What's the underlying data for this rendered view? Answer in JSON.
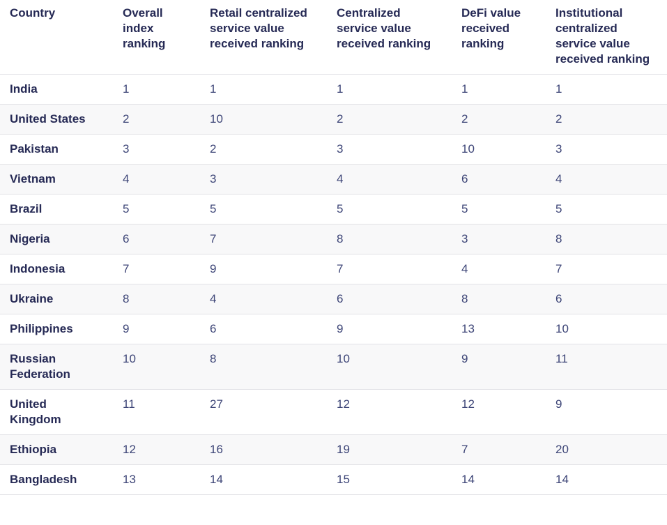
{
  "colors": {
    "header_text": "#262a55",
    "number_text": "#3d4577",
    "row_stripe": "#f8f8f9",
    "border": "#e2e2e6",
    "background": "#ffffff"
  },
  "chart_data": {
    "type": "table",
    "columns": [
      "Country",
      "Overall index ranking",
      "Retail centralized service value received ranking",
      "Centralized service value received ranking",
      "DeFi value received ranking",
      "Institutional centralized service value received ranking"
    ],
    "rows": [
      {
        "country": "India",
        "values": [
          "1",
          "1",
          "1",
          "1",
          "1"
        ]
      },
      {
        "country": "United States",
        "values": [
          "2",
          "10",
          "2",
          "2",
          "2"
        ]
      },
      {
        "country": "Pakistan",
        "values": [
          "3",
          "2",
          "3",
          "10",
          "3"
        ]
      },
      {
        "country": "Vietnam",
        "values": [
          "4",
          "3",
          "4",
          "6",
          "4"
        ]
      },
      {
        "country": "Brazil",
        "values": [
          "5",
          "5",
          "5",
          "5",
          "5"
        ]
      },
      {
        "country": "Nigeria",
        "values": [
          "6",
          "7",
          "8",
          "3",
          "8"
        ]
      },
      {
        "country": "Indonesia",
        "values": [
          "7",
          "9",
          "7",
          "4",
          "7"
        ]
      },
      {
        "country": "Ukraine",
        "values": [
          "8",
          "4",
          "6",
          "8",
          "6"
        ]
      },
      {
        "country": "Philippines",
        "values": [
          "9",
          "6",
          "9",
          "13",
          "10"
        ]
      },
      {
        "country": "Russian Federation",
        "values": [
          "10",
          "8",
          "10",
          "9",
          "11"
        ]
      },
      {
        "country": "United Kingdom",
        "values": [
          "11",
          "27",
          "12",
          "12",
          "9"
        ]
      },
      {
        "country": "Ethiopia",
        "values": [
          "12",
          "16",
          "19",
          "7",
          "20"
        ]
      },
      {
        "country": "Bangladesh",
        "values": [
          "13",
          "14",
          "15",
          "14",
          "14"
        ]
      }
    ]
  }
}
